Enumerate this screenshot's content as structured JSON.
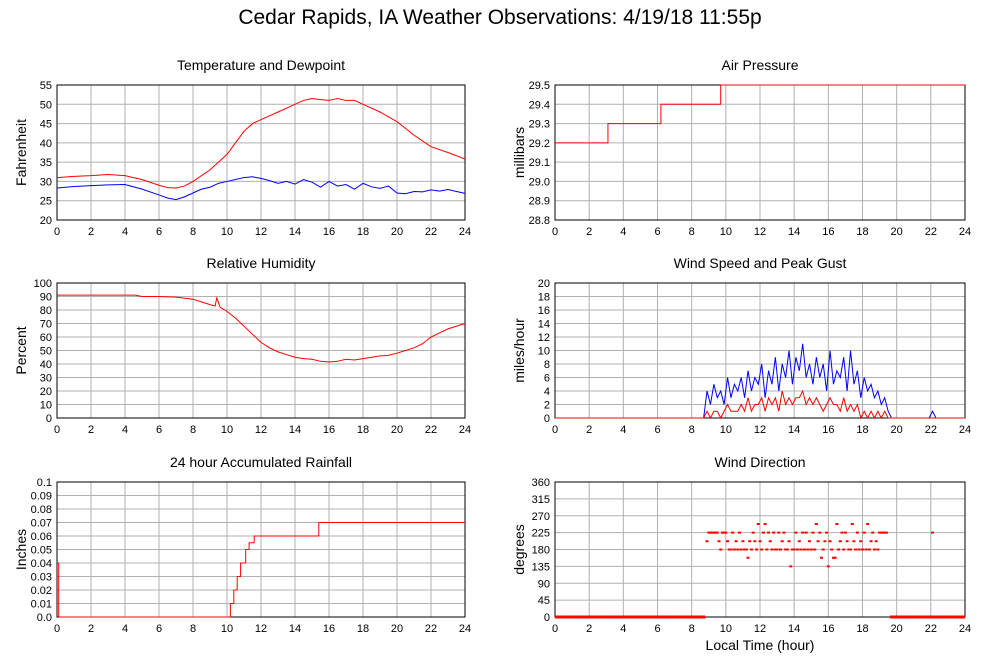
{
  "page": {
    "title": "Cedar Rapids, IA Weather Observations: 4/19/18 11:55p"
  },
  "colors": {
    "red": "#ff0000",
    "blue": "#0000ff",
    "grid": "#b0b0b0",
    "axis": "#000000"
  },
  "chart_data": [
    {
      "id": "temp",
      "type": "line",
      "title": "Temperature and Dewpoint",
      "xlabel": "",
      "ylabel": "Fahrenheit",
      "xlim": [
        0,
        24
      ],
      "ylim": [
        20,
        55
      ],
      "xticks": [
        "0",
        "2",
        "4",
        "6",
        "8",
        "10",
        "12",
        "14",
        "16",
        "18",
        "20",
        "22",
        "24"
      ],
      "yticks": [
        "20",
        "25",
        "30",
        "35",
        "40",
        "45",
        "50",
        "55"
      ],
      "grid": true,
      "series": [
        {
          "color": "red",
          "style": "line",
          "x": [
            0,
            1,
            2,
            3,
            4,
            5,
            6,
            6.5,
            7,
            7.5,
            8,
            9,
            10,
            10.5,
            11,
            11.5,
            12,
            12.5,
            13,
            13.5,
            14,
            14.5,
            15,
            15.5,
            16,
            16.5,
            17,
            17.5,
            18,
            19,
            20,
            21,
            22,
            23,
            24
          ],
          "y": [
            31,
            31.3,
            31.5,
            31.8,
            31.5,
            30.5,
            29,
            28.4,
            28.3,
            28.8,
            30,
            33,
            37,
            40,
            43,
            45,
            46,
            47,
            48,
            49,
            50,
            51,
            51.5,
            51.2,
            51,
            51.5,
            51,
            51,
            50,
            48,
            45.5,
            42,
            39,
            37.5,
            35.8
          ]
        },
        {
          "color": "blue",
          "style": "line",
          "x": [
            0,
            1,
            2,
            3,
            4,
            5,
            6,
            6.5,
            7,
            7.5,
            8,
            8.5,
            9,
            9.5,
            10,
            10.5,
            11,
            11.5,
            12,
            12.5,
            13,
            13.5,
            14,
            14.5,
            15,
            15.5,
            16,
            16.5,
            17,
            17.5,
            18,
            18.5,
            19,
            19.5,
            20,
            20.5,
            21,
            21.5,
            22,
            22.5,
            23,
            23.5,
            24
          ],
          "y": [
            28.3,
            28.7,
            28.9,
            29.1,
            29.2,
            28,
            26.5,
            25.7,
            25.3,
            26,
            27,
            28,
            28.5,
            29.5,
            30,
            30.5,
            31,
            31.2,
            30.8,
            30.2,
            29.5,
            30,
            29.3,
            30.5,
            29.8,
            28.5,
            30,
            28.8,
            29.2,
            28,
            29.5,
            28.6,
            28.2,
            28.8,
            27,
            26.8,
            27.4,
            27.3,
            27.8,
            27.5,
            27.9,
            27.4,
            26.9
          ]
        }
      ]
    },
    {
      "id": "pressure",
      "type": "line",
      "title": "Air Pressure",
      "xlabel": "",
      "ylabel": "millibars",
      "xlim": [
        0,
        24
      ],
      "ylim": [
        28.8,
        29.5
      ],
      "xticks": [
        "0",
        "2",
        "4",
        "6",
        "8",
        "10",
        "12",
        "14",
        "16",
        "18",
        "20",
        "22",
        "24"
      ],
      "yticks": [
        "28.8",
        "28.9",
        "29.0",
        "29.1",
        "29.2",
        "29.3",
        "29.4",
        "29.5"
      ],
      "grid": true,
      "series": [
        {
          "color": "red",
          "style": "step",
          "x": [
            0,
            3.1,
            6.2,
            9.7,
            24
          ],
          "y": [
            29.2,
            29.3,
            29.4,
            29.5,
            29.5
          ]
        }
      ]
    },
    {
      "id": "humidity",
      "type": "line",
      "title": "Relative Humidity",
      "xlabel": "",
      "ylabel": "Percent",
      "xlim": [
        0,
        24
      ],
      "ylim": [
        0,
        100
      ],
      "xticks": [
        "0",
        "2",
        "4",
        "6",
        "8",
        "10",
        "12",
        "14",
        "16",
        "18",
        "20",
        "22",
        "24"
      ],
      "yticks": [
        "0",
        "10",
        "20",
        "30",
        "40",
        "50",
        "60",
        "70",
        "80",
        "90",
        "100"
      ],
      "grid": true,
      "series": [
        {
          "color": "red",
          "style": "line",
          "x": [
            0,
            1,
            2,
            3,
            4,
            4.6,
            5,
            6,
            7,
            8,
            8.5,
            9,
            9.3,
            9.4,
            9.6,
            10,
            10.5,
            11,
            11.5,
            12,
            12.5,
            13,
            13.5,
            14,
            14.5,
            15,
            15.5,
            16,
            16.5,
            17,
            17.5,
            18,
            18.5,
            19,
            19.5,
            20,
            20.5,
            21,
            21.5,
            22,
            22.5,
            23,
            24
          ],
          "y": [
            91,
            91,
            91,
            91,
            91,
            91,
            90,
            90,
            89.5,
            88,
            86,
            84,
            83,
            89,
            82,
            79,
            74,
            68,
            62,
            56,
            52,
            49,
            47,
            45,
            44,
            43.5,
            42,
            41.5,
            42,
            43.5,
            43,
            44,
            45,
            46,
            46.5,
            48,
            50,
            52,
            55,
            60,
            63,
            66,
            70
          ]
        }
      ]
    },
    {
      "id": "wind",
      "type": "line",
      "title": "Wind Speed and Peak Gust",
      "xlabel": "",
      "ylabel": "miles/hour",
      "xlim": [
        0,
        24
      ],
      "ylim": [
        0,
        20
      ],
      "xticks": [
        "0",
        "2",
        "4",
        "6",
        "8",
        "10",
        "12",
        "14",
        "16",
        "18",
        "20",
        "22",
        "24"
      ],
      "yticks": [
        "0",
        "2",
        "4",
        "6",
        "8",
        "10",
        "12",
        "14",
        "16",
        "18",
        "20"
      ],
      "grid": true,
      "series": [
        {
          "color": "blue",
          "style": "line",
          "x": [
            0,
            8.7,
            8.9,
            9.1,
            9.3,
            9.5,
            9.7,
            9.9,
            10.1,
            10.3,
            10.5,
            10.7,
            10.9,
            11.1,
            11.3,
            11.5,
            11.7,
            11.9,
            12.1,
            12.3,
            12.5,
            12.7,
            12.9,
            13.1,
            13.3,
            13.5,
            13.7,
            13.9,
            14.1,
            14.3,
            14.5,
            14.7,
            14.9,
            15.1,
            15.3,
            15.5,
            15.7,
            15.9,
            16.1,
            16.3,
            16.5,
            16.7,
            16.9,
            17.1,
            17.3,
            17.5,
            17.7,
            17.9,
            18.1,
            18.3,
            18.5,
            18.7,
            18.9,
            19.1,
            19.3,
            19.5,
            19.7,
            21.9,
            22.1,
            22.3,
            24
          ],
          "y": [
            0,
            0,
            4,
            2,
            5,
            3,
            4,
            2,
            6,
            3,
            5,
            4,
            6,
            3,
            7,
            4,
            6,
            5,
            8,
            3,
            7,
            5,
            9,
            4,
            8,
            6,
            10,
            5,
            9,
            7,
            11,
            6,
            8,
            5,
            9,
            6,
            8,
            4,
            10,
            5,
            7,
            6,
            9,
            4,
            10,
            5,
            7,
            3,
            6,
            4,
            5,
            3,
            4,
            2,
            3,
            1,
            0,
            0,
            1,
            0,
            0
          ]
        },
        {
          "color": "red",
          "style": "line",
          "x": [
            0,
            8.7,
            8.9,
            9.1,
            9.3,
            9.5,
            9.7,
            9.9,
            10.1,
            10.3,
            10.5,
            10.7,
            10.9,
            11.1,
            11.3,
            11.5,
            11.7,
            11.9,
            12.1,
            12.3,
            12.5,
            12.7,
            12.9,
            13.1,
            13.3,
            13.5,
            13.7,
            13.9,
            14.1,
            14.3,
            14.5,
            14.7,
            14.9,
            15.1,
            15.3,
            15.5,
            15.7,
            15.9,
            16.1,
            16.3,
            16.5,
            16.7,
            16.9,
            17.1,
            17.3,
            17.5,
            17.7,
            17.9,
            18.1,
            18.3,
            18.5,
            18.7,
            18.9,
            19.1,
            19.3,
            19.5,
            19.7,
            24
          ],
          "y": [
            0,
            0,
            1,
            0,
            1,
            1,
            0,
            1,
            2,
            1,
            1,
            1,
            2,
            1,
            3,
            1,
            2,
            2,
            3,
            1,
            3,
            2,
            3,
            1,
            4,
            2,
            3,
            2,
            3,
            3,
            4,
            2,
            3,
            2,
            3,
            2,
            1,
            2,
            3,
            2,
            2,
            1,
            3,
            1,
            2,
            1,
            2,
            0,
            1,
            0,
            1,
            0,
            1,
            0,
            1,
            0,
            0,
            0
          ]
        }
      ]
    },
    {
      "id": "rain",
      "type": "line",
      "title": "24 hour Accumulated Rainfall",
      "xlabel": "",
      "ylabel": "Inches",
      "xlim": [
        0,
        24
      ],
      "ylim": [
        0,
        0.1
      ],
      "xticks": [
        "0",
        "2",
        "4",
        "6",
        "8",
        "10",
        "12",
        "14",
        "16",
        "18",
        "20",
        "22",
        "24"
      ],
      "yticks": [
        "0.0",
        "0.01",
        "0.02",
        "0.03",
        "0.04",
        "0.05",
        "0.06",
        "0.07",
        "0.08",
        "0.09",
        "0.1"
      ],
      "grid": true,
      "series": [
        {
          "color": "red",
          "style": "step",
          "x": [
            0,
            0.1,
            10.2,
            10.4,
            10.6,
            10.8,
            11.1,
            11.3,
            11.6,
            15.4,
            24
          ],
          "y": [
            0.04,
            0,
            0.01,
            0.02,
            0.03,
            0.04,
            0.05,
            0.055,
            0.06,
            0.07,
            0.07
          ]
        }
      ]
    },
    {
      "id": "winddir",
      "type": "scatter",
      "title": "Wind Direction",
      "xlabel": "Local Time (hour)",
      "ylabel": "degrees",
      "xlim": [
        0,
        24
      ],
      "ylim": [
        0,
        360
      ],
      "xticks": [
        "0",
        "2",
        "4",
        "6",
        "8",
        "10",
        "12",
        "14",
        "16",
        "18",
        "20",
        "22",
        "24"
      ],
      "yticks": [
        "0",
        "45",
        "90",
        "135",
        "180",
        "225",
        "270",
        "315",
        "360"
      ],
      "grid": true,
      "series": [
        {
          "color": "red",
          "style": "scatter",
          "x": [
            8.9,
            9.0,
            9.1,
            9.2,
            9.3,
            9.4,
            9.5,
            9.6,
            9.7,
            9.8,
            9.9,
            10.0,
            10.1,
            10.2,
            10.3,
            10.4,
            10.5,
            10.6,
            10.7,
            10.8,
            10.9,
            11.0,
            11.1,
            11.2,
            11.3,
            11.4,
            11.5,
            11.6,
            11.7,
            11.8,
            11.9,
            12.0,
            12.1,
            12.2,
            12.3,
            12.4,
            12.5,
            12.6,
            12.7,
            12.8,
            12.9,
            13.0,
            13.1,
            13.2,
            13.3,
            13.4,
            13.5,
            13.6,
            13.7,
            13.8,
            13.9,
            14.0,
            14.1,
            14.2,
            14.3,
            14.4,
            14.5,
            14.6,
            14.7,
            14.8,
            14.9,
            15.0,
            15.1,
            15.2,
            15.3,
            15.4,
            15.5,
            15.6,
            15.7,
            15.8,
            15.9,
            16.0,
            16.1,
            16.2,
            16.3,
            16.4,
            16.5,
            16.6,
            16.7,
            16.8,
            16.9,
            17.0,
            17.1,
            17.2,
            17.3,
            17.4,
            17.5,
            17.6,
            17.7,
            17.8,
            17.9,
            18.0,
            18.1,
            18.2,
            18.3,
            18.4,
            18.5,
            18.6,
            18.7,
            18.8,
            18.9,
            19.0,
            19.1,
            19.2,
            19.3,
            19.4,
            22.1
          ],
          "y": [
            202,
            225,
            225,
            225,
            225,
            225,
            225,
            202,
            180,
            225,
            225,
            225,
            202,
            180,
            180,
            225,
            180,
            202,
            180,
            225,
            180,
            202,
            180,
            180,
            158,
            202,
            180,
            225,
            202,
            180,
            248,
            202,
            180,
            225,
            248,
            180,
            225,
            202,
            180,
            225,
            180,
            180,
            225,
            180,
            202,
            225,
            180,
            180,
            202,
            135,
            180,
            180,
            225,
            180,
            202,
            180,
            225,
            180,
            225,
            180,
            202,
            180,
            225,
            180,
            248,
            202,
            225,
            158,
            180,
            202,
            225,
            135,
            202,
            180,
            158,
            158,
            248,
            180,
            202,
            225,
            180,
            225,
            202,
            180,
            180,
            248,
            202,
            180,
            225,
            180,
            202,
            180,
            225,
            180,
            248,
            180,
            202,
            225,
            180,
            202,
            180,
            225,
            225,
            225,
            225,
            225,
            225
          ]
        }
      ],
      "zero_line": {
        "x_ranges": [
          [
            0,
            8.8
          ],
          [
            19.6,
            24
          ]
        ],
        "y": 0
      }
    }
  ]
}
